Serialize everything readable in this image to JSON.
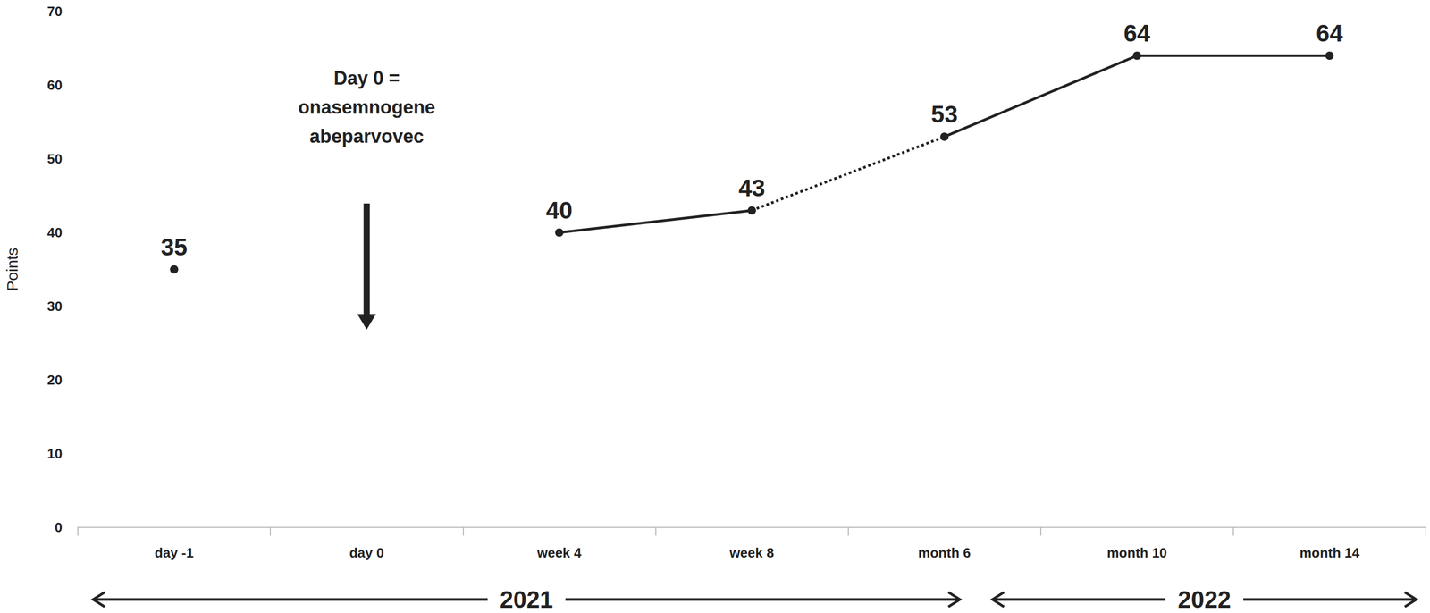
{
  "chart_data": {
    "type": "line",
    "y_label": "Points",
    "categories": [
      "day -1",
      "day 0",
      "week 4",
      "week 8",
      "month 6",
      "month 10",
      "month 14"
    ],
    "series": [
      {
        "values": [
          35,
          null,
          40,
          43,
          null,
          null,
          null
        ],
        "line_style": "solid",
        "marker": "circle",
        "data_labels": true,
        "color": "#222222"
      },
      {
        "values": [
          null,
          null,
          null,
          43,
          53,
          null,
          null
        ],
        "line_style": "dotted",
        "marker": "none",
        "data_labels": false,
        "color": "#222222"
      },
      {
        "values": [
          null,
          null,
          null,
          null,
          53,
          64,
          64
        ],
        "line_style": "solid",
        "marker": "circle",
        "data_labels": true,
        "color": "#222222"
      }
    ],
    "ylim": [
      0,
      70
    ],
    "yticks": [
      0,
      10,
      20,
      30,
      40,
      50,
      60,
      70
    ],
    "grid": false,
    "annotations": [
      {
        "text": "Day 0 =\nonasemnogene\nabeparvovec",
        "x": "day 0"
      }
    ],
    "year_spans": [
      {
        "label": "2021",
        "from": "day -1",
        "to": "month 6"
      },
      {
        "label": "2022",
        "from": "month 10",
        "to": "month 14"
      }
    ]
  }
}
